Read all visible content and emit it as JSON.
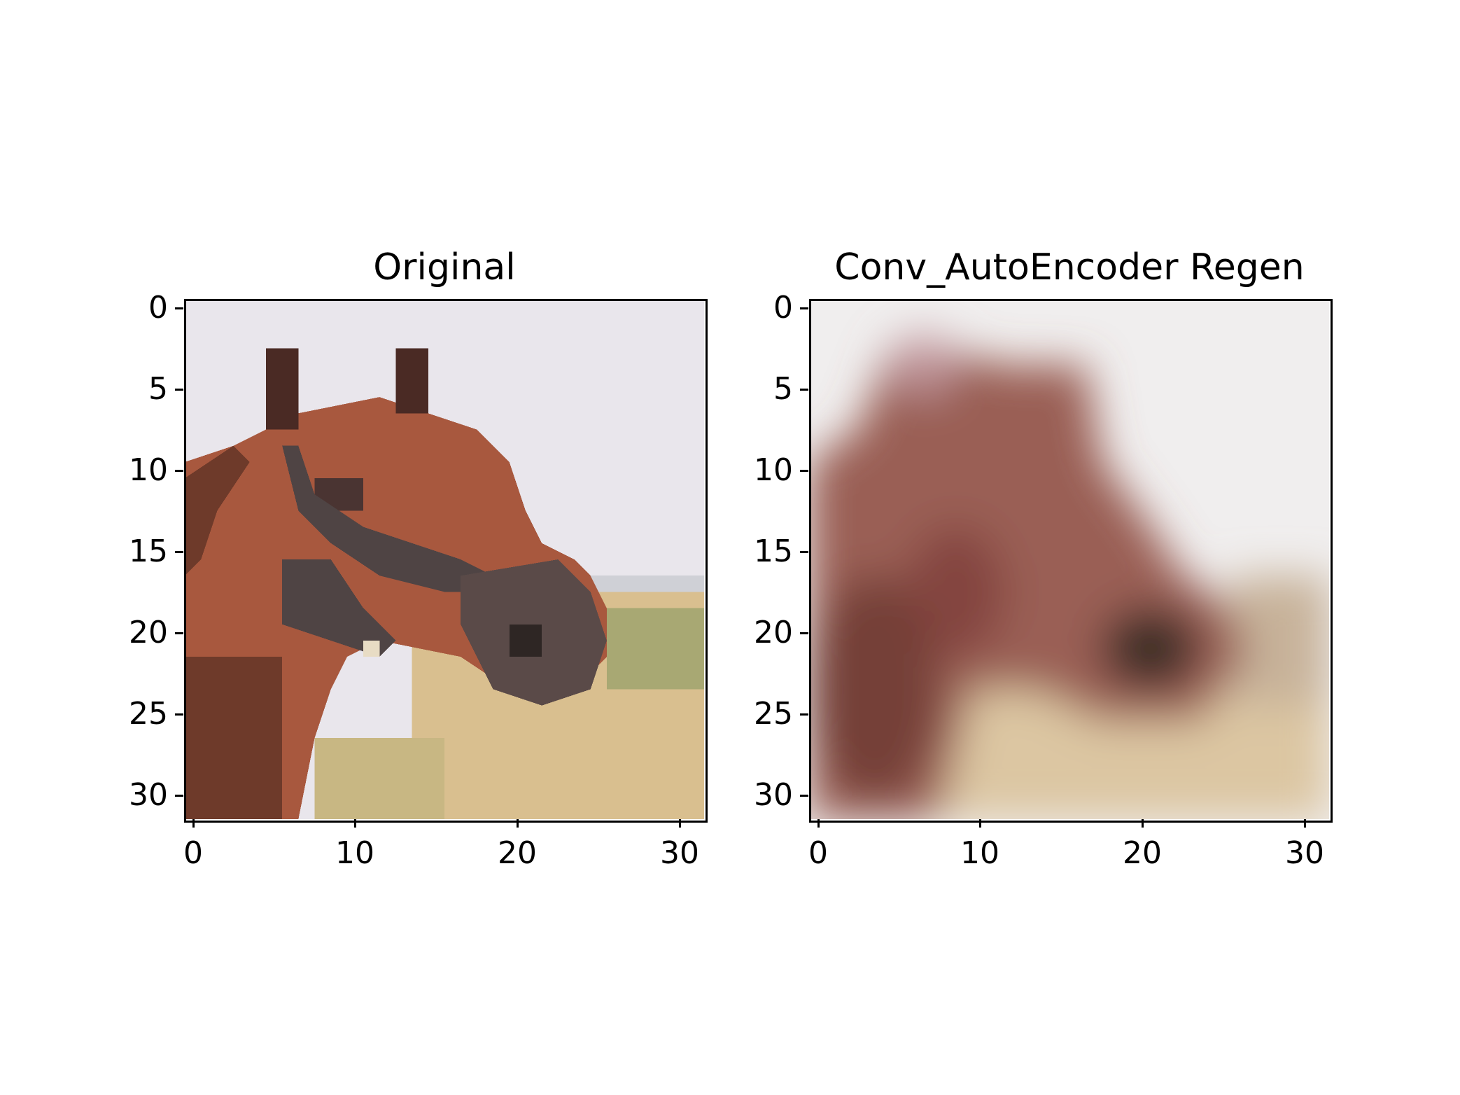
{
  "panels": [
    {
      "title": "Original",
      "x_ticks": [
        "0",
        "10",
        "20",
        "30"
      ],
      "y_ticks": [
        "0",
        "5",
        "10",
        "15",
        "20",
        "25",
        "30"
      ],
      "image": {
        "subject": "horse-head",
        "resolution": "32x32",
        "palette": {
          "sky": "#e9e6ec",
          "coat": "#a8583e",
          "coat_dark": "#6e3a2a",
          "ear_dark": "#4a2a24",
          "bridle": "#4f4444",
          "muzzle": "#5a4a48",
          "field": "#d9bf8f",
          "field_green": "#a8a873"
        }
      }
    },
    {
      "title": "Conv_AutoEncoder Regen",
      "x_ticks": [
        "0",
        "10",
        "20",
        "30"
      ],
      "y_ticks": [
        "0",
        "5",
        "10",
        "15",
        "20",
        "25",
        "30"
      ],
      "image": {
        "subject": "horse-head-blurred-reconstruction",
        "resolution": "32x32",
        "palette": {
          "sky": "#f0eeee",
          "coat": "#9a5e54",
          "coat_dark": "#6a3a30",
          "muzzle": "#3e2e26",
          "field": "#dcc6a2"
        }
      }
    }
  ]
}
